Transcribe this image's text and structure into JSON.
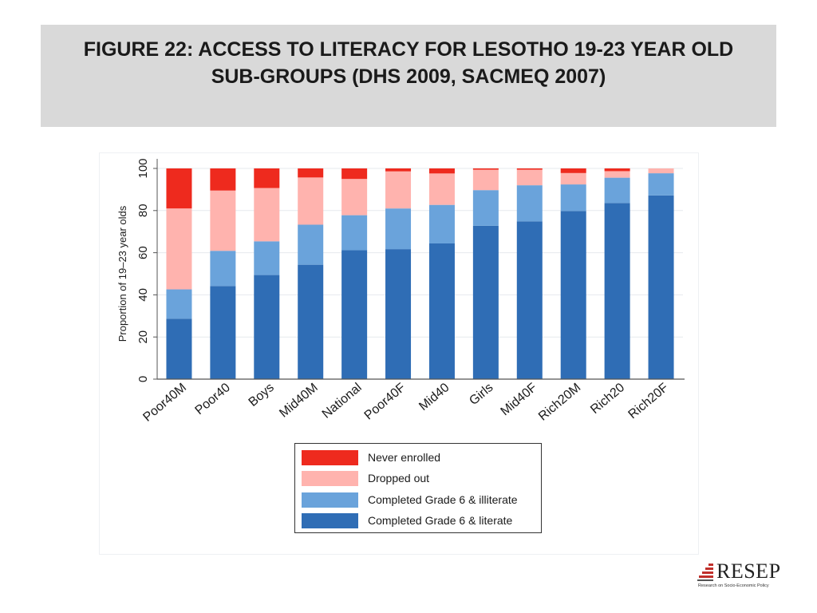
{
  "header": {
    "title": "FIGURE 22: ACCESS TO LITERACY FOR LESOTHO 19-23 YEAR OLD SUB-GROUPS (DHS 2009, SACMEQ 2007)"
  },
  "logo": {
    "name": "RESEP",
    "tagline": "Research on Socio-Economic Policy"
  },
  "colors": {
    "never_enrolled": "#ee2a1e",
    "dropped_out": "#ffb3ae",
    "completed_illiterate": "#6aa3db",
    "completed_literate": "#2f6db5",
    "title_band": "#d9d9d9",
    "logo_red": "#c0302b"
  },
  "chart_data": {
    "type": "bar",
    "stacked": true,
    "ylabel": "Proportion of 19–23 year olds",
    "xlabel": "",
    "ylim": [
      0,
      100
    ],
    "yticks": [
      0,
      20,
      40,
      60,
      80,
      100
    ],
    "grid": true,
    "legend_position": "bottom",
    "categories": [
      "Poor40M",
      "Poor40",
      "Boys",
      "Mid40M",
      "National",
      "Poor40F",
      "Mid40",
      "Girls",
      "Mid40F",
      "Rich20M",
      "Rich20",
      "Rich20F"
    ],
    "series": [
      {
        "name": "Completed Grade 6 & literate",
        "color_key": "completed_literate",
        "values": [
          28.7,
          44.2,
          49.4,
          54.3,
          61.2,
          61.7,
          64.4,
          72.8,
          74.9,
          79.8,
          83.6,
          87.2
        ]
      },
      {
        "name": "Completed Grade 6 & illiterate",
        "color_key": "completed_illiterate",
        "values": [
          13.9,
          16.7,
          16.0,
          19.0,
          16.6,
          19.3,
          18.3,
          16.9,
          17.1,
          12.6,
          12.0,
          10.5
        ]
      },
      {
        "name": "Dropped out",
        "color_key": "dropped_out",
        "values": [
          38.4,
          28.6,
          25.3,
          22.4,
          17.2,
          17.6,
          14.9,
          9.7,
          7.4,
          5.4,
          3.1,
          2.3
        ]
      },
      {
        "name": "Never enrolled",
        "color_key": "never_enrolled",
        "values": [
          19.0,
          10.5,
          9.3,
          4.3,
          5.0,
          1.4,
          2.4,
          0.6,
          0.6,
          2.2,
          1.3,
          0.0
        ]
      }
    ],
    "legend_order": [
      "Never enrolled",
      "Dropped out",
      "Completed Grade 6 & illiterate",
      "Completed Grade 6 & literate"
    ]
  }
}
